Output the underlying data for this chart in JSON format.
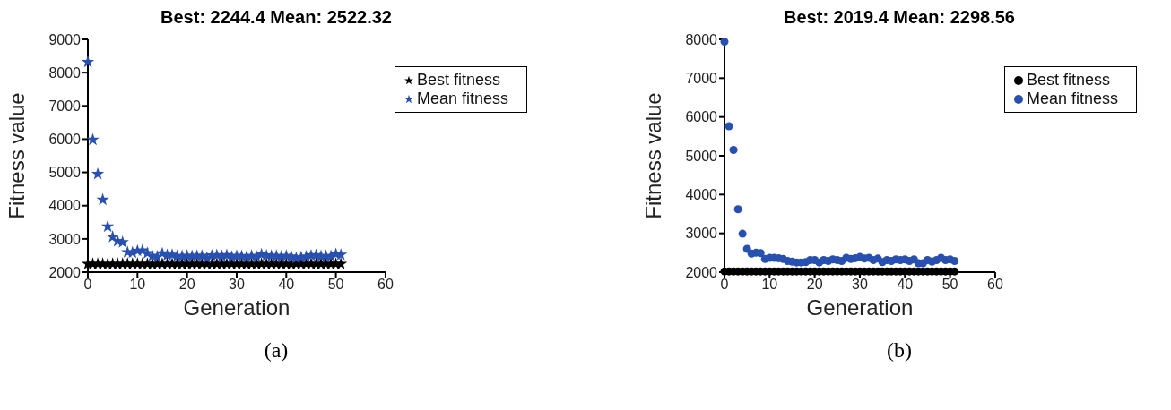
{
  "chart_data": [
    {
      "type": "scatter",
      "title": "Best: 2244.4 Mean: 2522.32",
      "xlabel": "Generation",
      "ylabel": "Fitness value",
      "annotations": [
        "(a)"
      ],
      "marker": "star",
      "legend": "top right",
      "grid": false,
      "x": [
        0,
        1,
        2,
        3,
        4,
        5,
        6,
        7,
        8,
        9,
        10,
        11,
        12,
        13,
        14,
        15,
        16,
        17,
        18,
        19,
        20,
        21,
        22,
        23,
        24,
        25,
        26,
        27,
        28,
        29,
        30,
        31,
        32,
        33,
        34,
        35,
        36,
        37,
        38,
        39,
        40,
        41,
        42,
        43,
        44,
        45,
        46,
        47,
        48,
        49,
        50,
        51
      ],
      "xlim": [
        0,
        60
      ],
      "xticks": [
        0,
        10,
        20,
        30,
        40,
        50,
        60
      ],
      "ylim": [
        2000,
        9000
      ],
      "yticks": [
        2000,
        3000,
        4000,
        5000,
        6000,
        7000,
        8000,
        9000
      ],
      "series": [
        {
          "name": "Best fitness",
          "color": "#000000",
          "values": [
            2244.4,
            2244.4,
            2244.4,
            2244.4,
            2244.4,
            2244.4,
            2244.4,
            2244.4,
            2244.4,
            2244.4,
            2244.4,
            2244.4,
            2244.4,
            2244.4,
            2244.4,
            2244.4,
            2244.4,
            2244.4,
            2244.4,
            2244.4,
            2244.4,
            2244.4,
            2244.4,
            2244.4,
            2244.4,
            2244.4,
            2244.4,
            2244.4,
            2244.4,
            2244.4,
            2244.4,
            2244.4,
            2244.4,
            2244.4,
            2244.4,
            2244.4,
            2244.4,
            2244.4,
            2244.4,
            2244.4,
            2244.4,
            2244.4,
            2244.4,
            2244.4,
            2244.4,
            2244.4,
            2244.4,
            2244.4,
            2244.4,
            2244.4,
            2244.4,
            2244.4
          ]
        },
        {
          "name": "Mean fitness",
          "color": "#2850b0",
          "values": [
            8320,
            5980,
            4950,
            4180,
            3370,
            3060,
            2930,
            2900,
            2600,
            2590,
            2640,
            2650,
            2570,
            2490,
            2460,
            2560,
            2510,
            2520,
            2480,
            2480,
            2490,
            2480,
            2490,
            2490,
            2430,
            2500,
            2510,
            2480,
            2510,
            2460,
            2490,
            2480,
            2460,
            2490,
            2470,
            2530,
            2500,
            2490,
            2490,
            2470,
            2490,
            2470,
            2420,
            2450,
            2470,
            2500,
            2510,
            2480,
            2480,
            2480,
            2540,
            2520
          ]
        }
      ]
    },
    {
      "type": "scatter",
      "title": "Best: 2019.4 Mean: 2298.56",
      "xlabel": "Generation",
      "ylabel": "Fitness value",
      "annotations": [
        "(b)"
      ],
      "marker": "circle",
      "legend": "top right",
      "grid": false,
      "x": [
        0,
        1,
        2,
        3,
        4,
        5,
        6,
        7,
        8,
        9,
        10,
        11,
        12,
        13,
        14,
        15,
        16,
        17,
        18,
        19,
        20,
        21,
        22,
        23,
        24,
        25,
        26,
        27,
        28,
        29,
        30,
        31,
        32,
        33,
        34,
        35,
        36,
        37,
        38,
        39,
        40,
        41,
        42,
        43,
        44,
        45,
        46,
        47,
        48,
        49,
        50,
        51
      ],
      "xlim": [
        0,
        60
      ],
      "xticks": [
        0,
        10,
        20,
        30,
        40,
        50,
        60
      ],
      "ylim": [
        2000,
        8000
      ],
      "yticks": [
        2000,
        3000,
        4000,
        5000,
        6000,
        7000,
        8000
      ],
      "series": [
        {
          "name": "Best fitness",
          "color": "#000000",
          "values": [
            2019.4,
            2019.4,
            2019.4,
            2019.4,
            2019.4,
            2019.4,
            2019.4,
            2019.4,
            2019.4,
            2019.4,
            2019.4,
            2019.4,
            2019.4,
            2019.4,
            2019.4,
            2019.4,
            2019.4,
            2019.4,
            2019.4,
            2019.4,
            2019.4,
            2019.4,
            2019.4,
            2019.4,
            2019.4,
            2019.4,
            2019.4,
            2019.4,
            2019.4,
            2019.4,
            2019.4,
            2019.4,
            2019.4,
            2019.4,
            2019.4,
            2019.4,
            2019.4,
            2019.4,
            2019.4,
            2019.4,
            2019.4,
            2019.4,
            2019.4,
            2019.4,
            2019.4,
            2019.4,
            2019.4,
            2019.4,
            2019.4,
            2019.4,
            2019.4,
            2019.4
          ]
        },
        {
          "name": "Mean fitness",
          "color": "#2850b0",
          "values": [
            7940,
            5760,
            5150,
            3620,
            2990,
            2600,
            2480,
            2500,
            2490,
            2340,
            2370,
            2370,
            2360,
            2340,
            2290,
            2270,
            2250,
            2250,
            2260,
            2310,
            2310,
            2250,
            2310,
            2290,
            2330,
            2310,
            2290,
            2370,
            2340,
            2360,
            2390,
            2350,
            2370,
            2310,
            2350,
            2260,
            2310,
            2290,
            2330,
            2310,
            2330,
            2290,
            2330,
            2230,
            2230,
            2310,
            2270,
            2310,
            2370,
            2310,
            2330,
            2290
          ]
        }
      ]
    }
  ]
}
